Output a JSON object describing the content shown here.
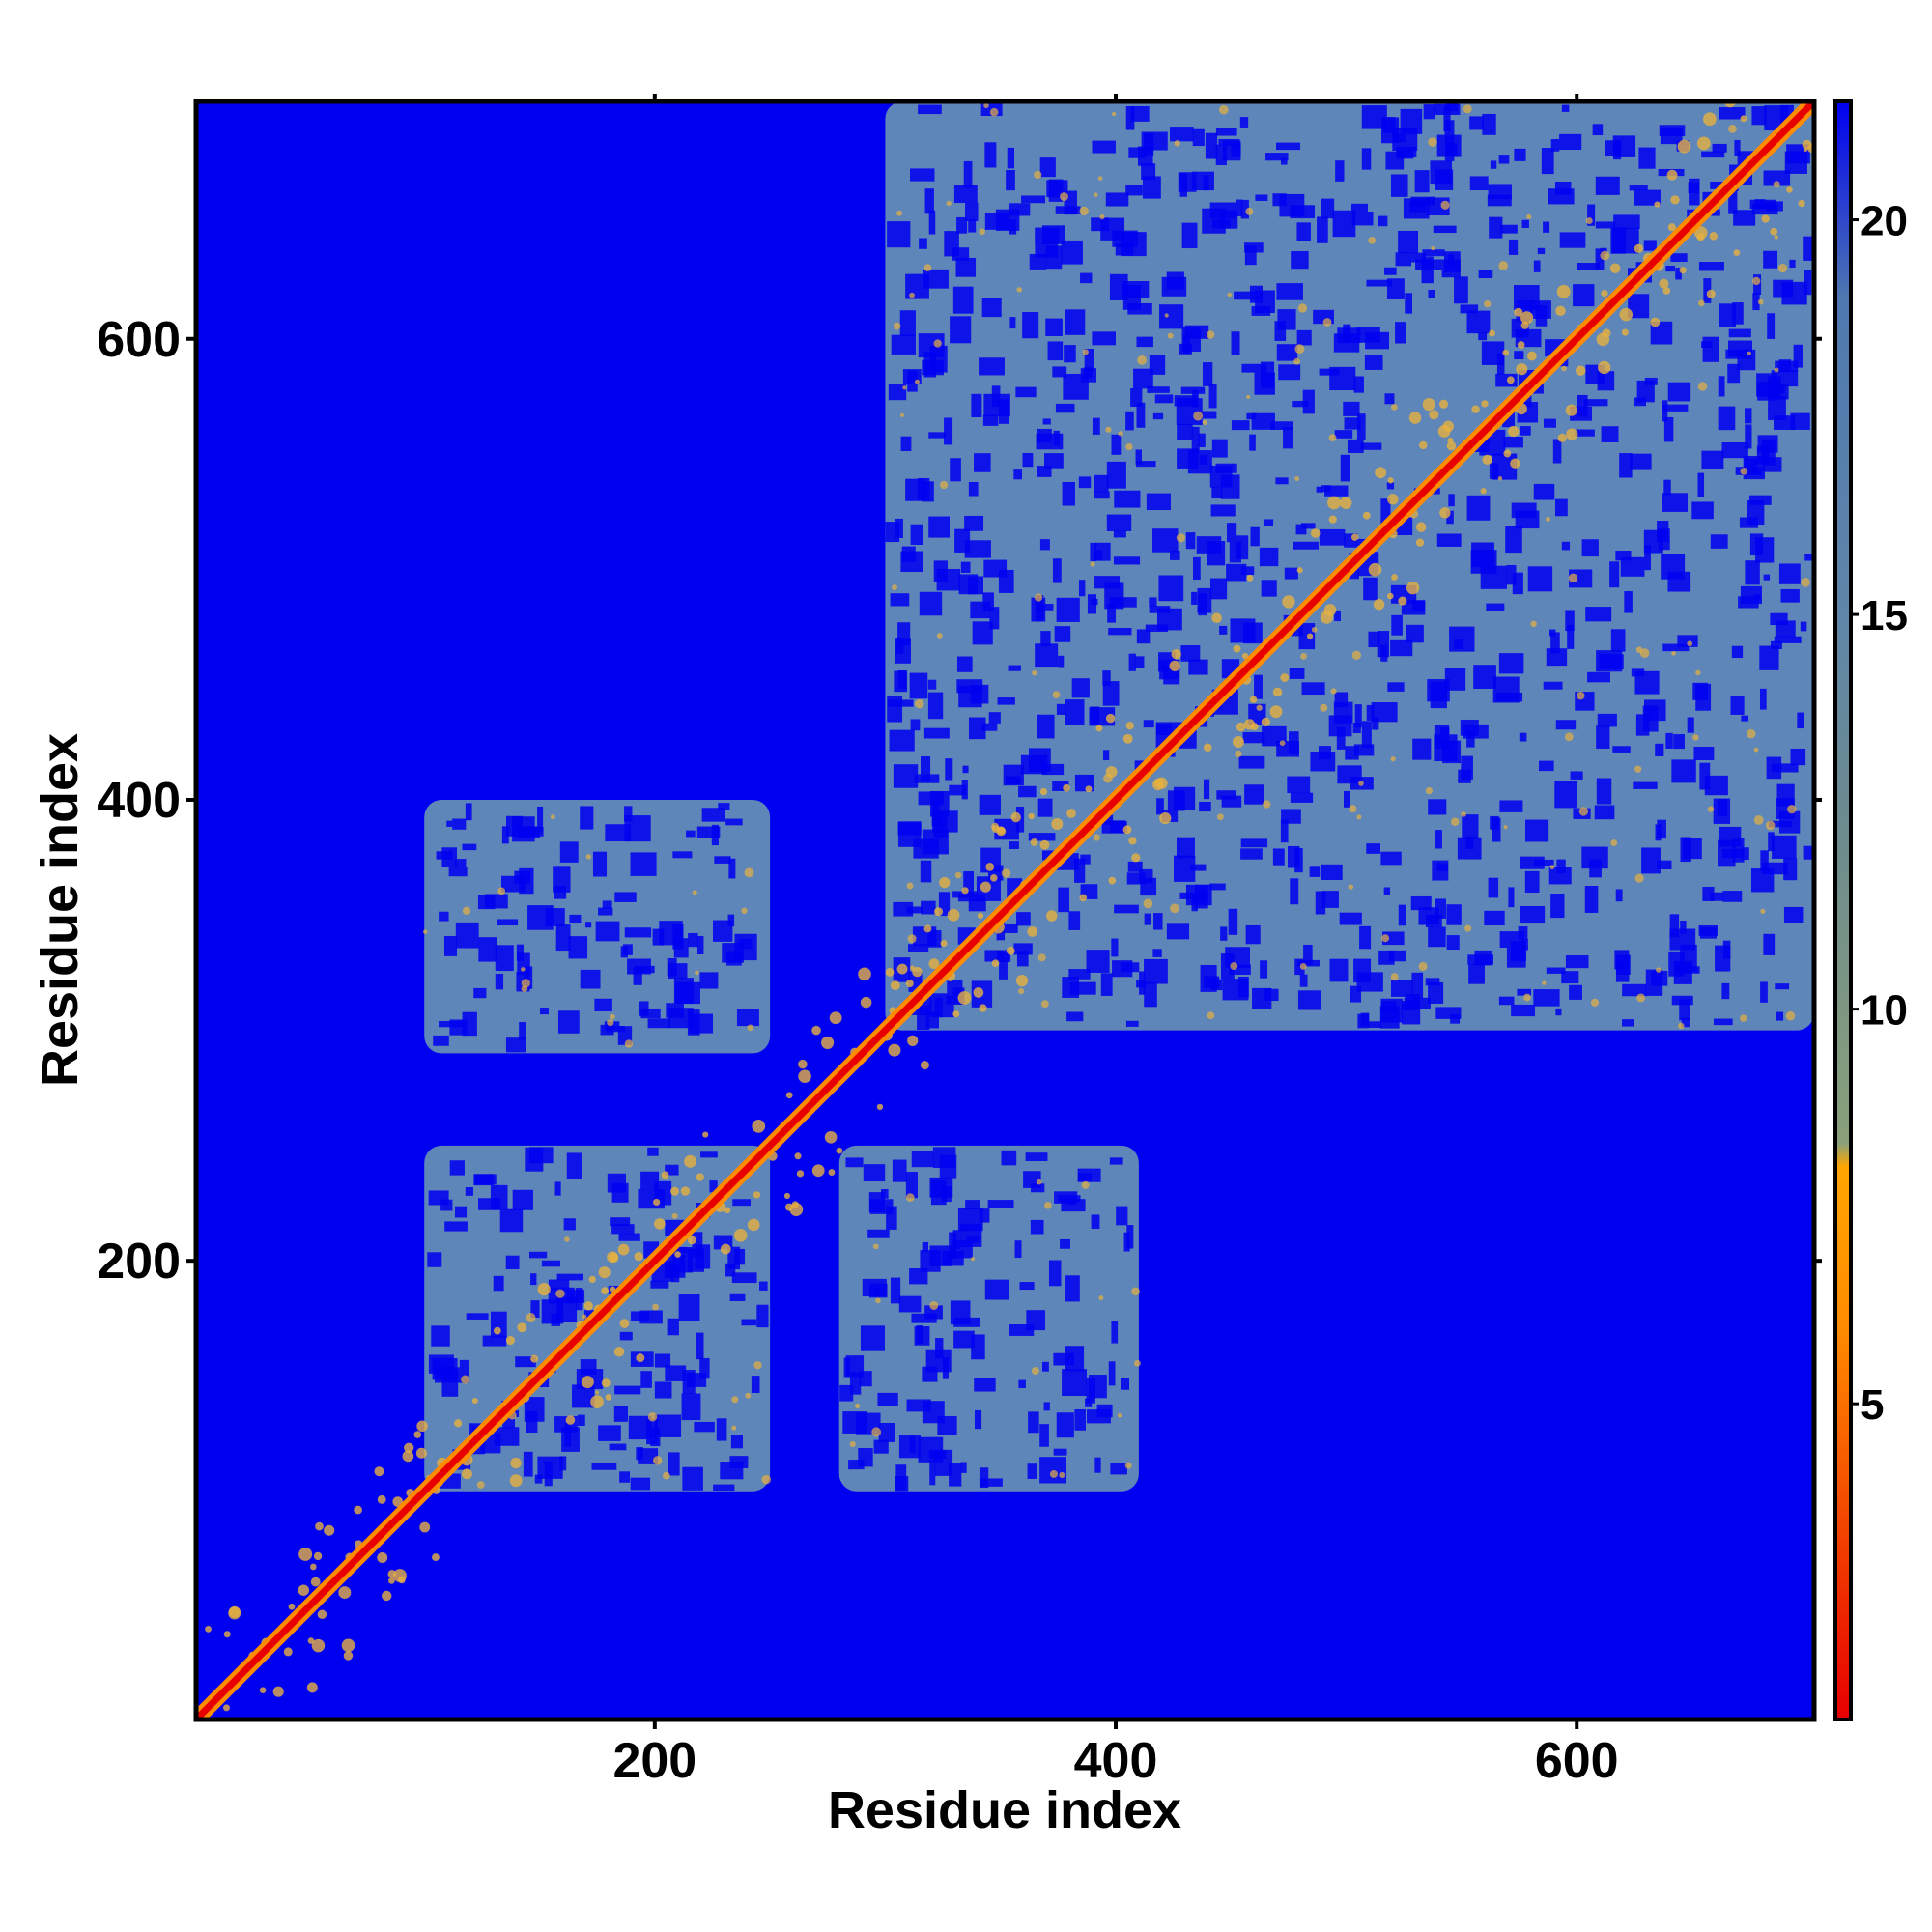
{
  "chart_data": {
    "type": "heatmap",
    "title": "",
    "xlabel": "Residue index",
    "ylabel": "Residue index",
    "xlim": [
      1,
      703
    ],
    "ylim": [
      1,
      703
    ],
    "x_ticks": [
      200,
      400,
      600
    ],
    "y_ticks": [
      200,
      400,
      600
    ],
    "x_tick_labels": [
      "200",
      "400",
      "600"
    ],
    "y_tick_labels": [
      "200",
      "400",
      "600"
    ],
    "colorbar": {
      "range": [
        1,
        21.5
      ],
      "ticks": [
        5,
        10,
        15,
        20
      ],
      "tick_labels": [
        "5",
        "10",
        "15",
        "20"
      ],
      "colors": [
        {
          "value": 1,
          "color": "#e60000"
        },
        {
          "value": 6,
          "color": "#ff8c00"
        },
        {
          "value": 8,
          "color": "#ffa500"
        },
        {
          "value": 8.3,
          "color": "#8aa07a"
        },
        {
          "value": 12,
          "color": "#6e8c8c"
        },
        {
          "value": 15,
          "color": "#5f86a8"
        },
        {
          "value": 19,
          "color": "#4f78b0"
        },
        {
          "value": 21.5,
          "color": "#0000f0"
        }
      ]
    },
    "background_color": "#0000f0",
    "contact_color": "#5f86b8",
    "diagonal_color": "#e60000",
    "near_contact_color": "#e6b040",
    "description_blocks": [
      {
        "x": [
          100,
          250
        ],
        "y": [
          100,
          250
        ]
      },
      {
        "x": [
          100,
          250
        ],
        "y": [
          290,
          400
        ]
      },
      {
        "x": [
          280,
          410
        ],
        "y": [
          100,
          250
        ]
      },
      {
        "x": [
          300,
          703
        ],
        "y": [
          300,
          703
        ]
      }
    ],
    "grid": false,
    "legend": "colorbar-right"
  }
}
